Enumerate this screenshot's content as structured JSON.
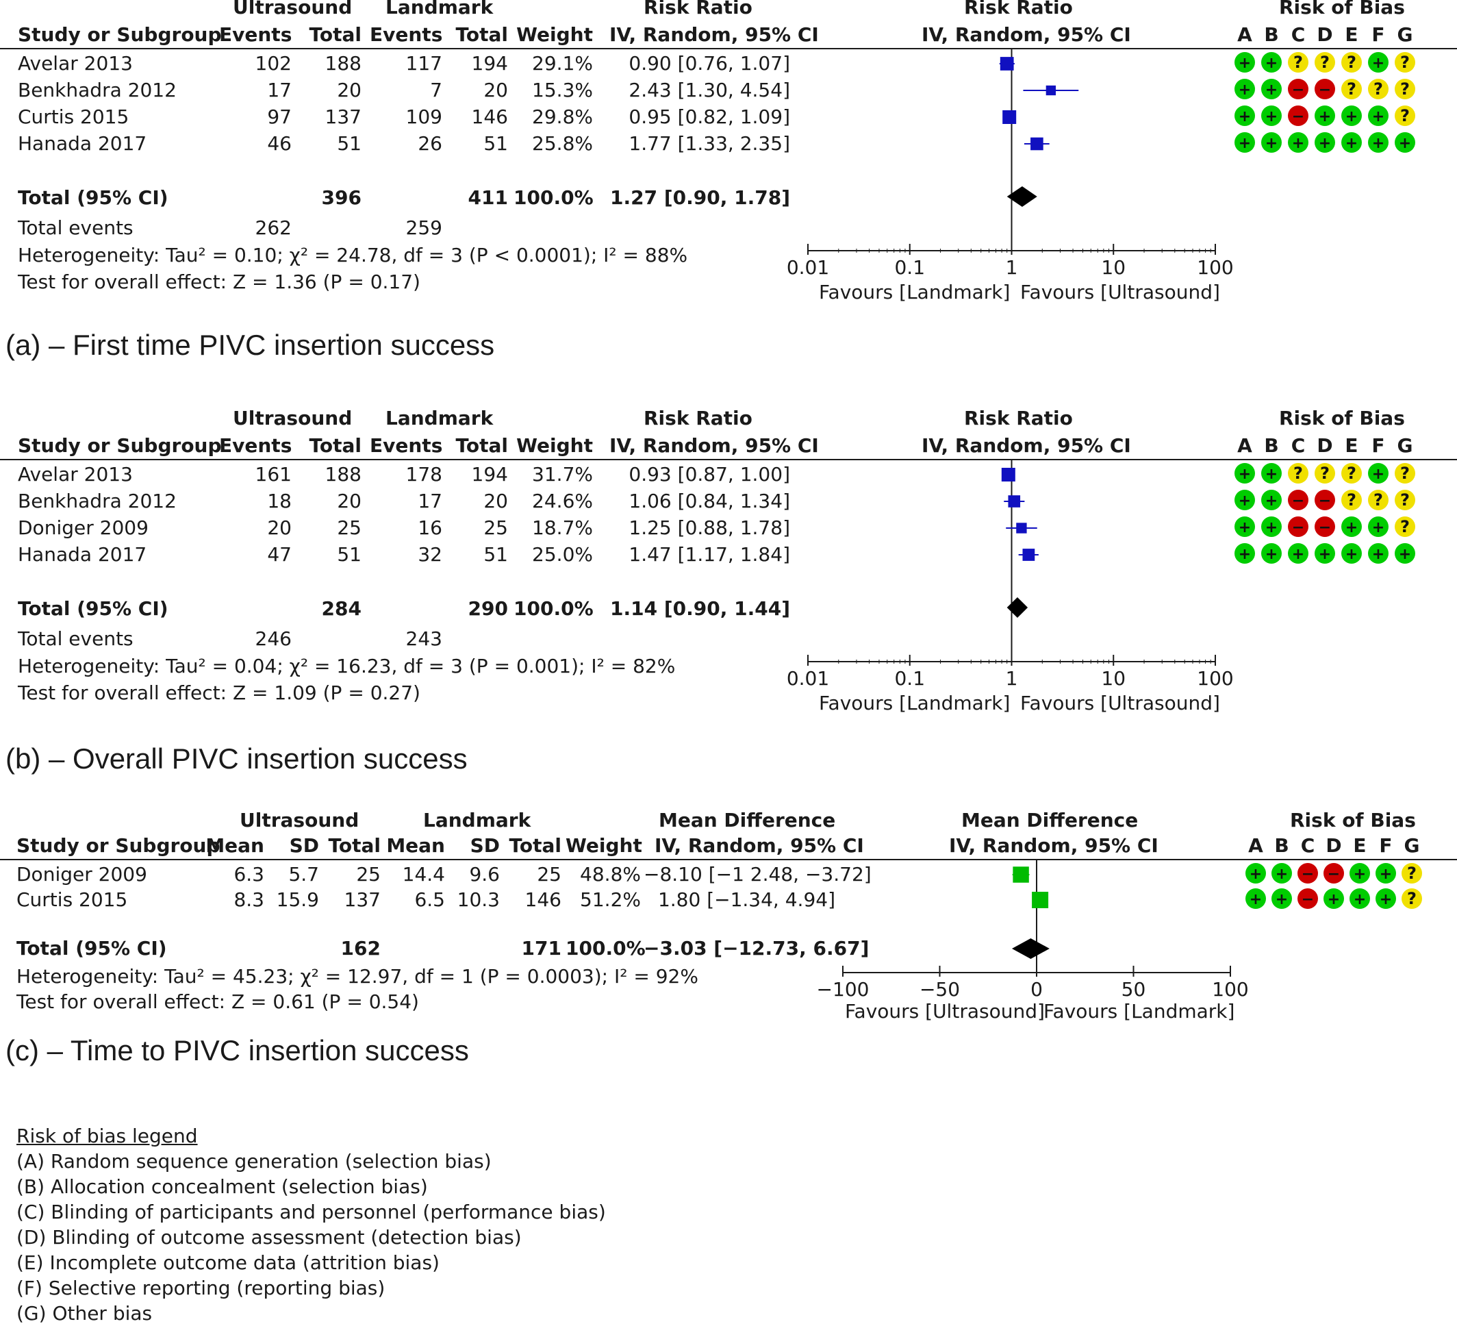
{
  "chart_data": [
    {
      "type": "forest",
      "measure": "Risk Ratio",
      "scale": "log",
      "caption": "(a) – First time PIVC insertion success",
      "headers": {
        "group1": "Ultrasound",
        "group2": "Landmark",
        "study": "Study or Subgroup",
        "events": "Events",
        "total": "Total",
        "weight": "Weight",
        "effect_top": "Risk Ratio",
        "effect_sub": "IV, Random, 95% CI",
        "plot_top": "Risk Ratio",
        "plot_sub": "IV, Random, 95% CI",
        "rob_title": "Risk of Bias"
      },
      "rob_letters": [
        "A",
        "B",
        "C",
        "D",
        "E",
        "F",
        "G"
      ],
      "studies": [
        {
          "name": "Avelar 2013",
          "e1": "102",
          "n1": "188",
          "e2": "117",
          "n2": "194",
          "weight": "29.1%",
          "ci_text": "0.90 [0.76, 1.07]",
          "est": 0.9,
          "lo": 0.76,
          "hi": 1.07,
          "w": 29.1,
          "rob": [
            "+",
            "+",
            "?",
            "?",
            "?",
            "+",
            "?"
          ]
        },
        {
          "name": "Benkhadra 2012",
          "e1": "17",
          "n1": "20",
          "e2": "7",
          "n2": "20",
          "weight": "15.3%",
          "ci_text": "2.43 [1.30, 4.54]",
          "est": 2.43,
          "lo": 1.3,
          "hi": 4.54,
          "w": 15.3,
          "rob": [
            "+",
            "+",
            "-",
            "-",
            "?",
            "?",
            "?"
          ]
        },
        {
          "name": "Curtis 2015",
          "e1": "97",
          "n1": "137",
          "e2": "109",
          "n2": "146",
          "weight": "29.8%",
          "ci_text": "0.95 [0.82, 1.09]",
          "est": 0.95,
          "lo": 0.82,
          "hi": 1.09,
          "w": 29.8,
          "rob": [
            "+",
            "+",
            "-",
            "+",
            "+",
            "+",
            "?"
          ]
        },
        {
          "name": "Hanada 2017",
          "e1": "46",
          "n1": "51",
          "e2": "26",
          "n2": "51",
          "weight": "25.8%",
          "ci_text": "1.77 [1.33, 2.35]",
          "est": 1.77,
          "lo": 1.33,
          "hi": 2.35,
          "w": 25.8,
          "rob": [
            "+",
            "+",
            "+",
            "+",
            "+",
            "+",
            "+"
          ]
        }
      ],
      "total": {
        "label": "Total (95% CI)",
        "n1": "396",
        "n2": "411",
        "weight": "100.0%",
        "ci_text": "1.27 [0.90, 1.78]",
        "est": 1.27,
        "lo": 0.9,
        "hi": 1.78
      },
      "total_events": {
        "label": "Total events",
        "e1": "262",
        "e2": "259"
      },
      "heterogeneity": "Heterogeneity: Tau² = 0.10; χ² = 24.78, df = 3 (P < 0.0001); I² = 88%",
      "overall_effect": "Test for overall effect: Z = 1.36 (P = 0.17)",
      "axis": {
        "ticks": [
          0.01,
          0.1,
          1,
          10,
          100
        ],
        "tick_labels": [
          "0.01",
          "0.1",
          "1",
          "10",
          "100"
        ],
        "left_label": "Favours [Landmark]",
        "right_label": "Favours [Ultrasound]"
      }
    },
    {
      "type": "forest",
      "measure": "Risk Ratio",
      "scale": "log",
      "caption": "(b) – Overall PIVC insertion success",
      "headers": {
        "group1": "Ultrasound",
        "group2": "Landmark",
        "study": "Study or Subgroup",
        "events": "Events",
        "total": "Total",
        "weight": "Weight",
        "effect_top": "Risk Ratio",
        "effect_sub": "IV, Random, 95% CI",
        "plot_top": "Risk Ratio",
        "plot_sub": "IV, Random, 95% CI",
        "rob_title": "Risk of Bias"
      },
      "rob_letters": [
        "A",
        "B",
        "C",
        "D",
        "E",
        "F",
        "G"
      ],
      "studies": [
        {
          "name": "Avelar 2013",
          "e1": "161",
          "n1": "188",
          "e2": "178",
          "n2": "194",
          "weight": "31.7%",
          "ci_text": "0.93 [0.87, 1.00]",
          "est": 0.93,
          "lo": 0.87,
          "hi": 1.0,
          "w": 31.7,
          "rob": [
            "+",
            "+",
            "?",
            "?",
            "?",
            "+",
            "?"
          ]
        },
        {
          "name": "Benkhadra 2012",
          "e1": "18",
          "n1": "20",
          "e2": "17",
          "n2": "20",
          "weight": "24.6%",
          "ci_text": "1.06 [0.84, 1.34]",
          "est": 1.06,
          "lo": 0.84,
          "hi": 1.34,
          "w": 24.6,
          "rob": [
            "+",
            "+",
            "-",
            "-",
            "?",
            "?",
            "?"
          ]
        },
        {
          "name": "Doniger 2009",
          "e1": "20",
          "n1": "25",
          "e2": "16",
          "n2": "25",
          "weight": "18.7%",
          "ci_text": "1.25 [0.88, 1.78]",
          "est": 1.25,
          "lo": 0.88,
          "hi": 1.78,
          "w": 18.7,
          "rob": [
            "+",
            "+",
            "-",
            "-",
            "+",
            "+",
            "?"
          ]
        },
        {
          "name": "Hanada 2017",
          "e1": "47",
          "n1": "51",
          "e2": "32",
          "n2": "51",
          "weight": "25.0%",
          "ci_text": "1.47 [1.17, 1.84]",
          "est": 1.47,
          "lo": 1.17,
          "hi": 1.84,
          "w": 25.0,
          "rob": [
            "+",
            "+",
            "+",
            "+",
            "+",
            "+",
            "+"
          ]
        }
      ],
      "total": {
        "label": "Total (95% CI)",
        "n1": "284",
        "n2": "290",
        "weight": "100.0%",
        "ci_text": "1.14 [0.90, 1.44]",
        "est": 1.14,
        "lo": 0.9,
        "hi": 1.44
      },
      "total_events": {
        "label": "Total events",
        "e1": "246",
        "e2": "243"
      },
      "heterogeneity": "Heterogeneity: Tau² = 0.04; χ² = 16.23, df = 3 (P = 0.001); I² = 82%",
      "overall_effect": "Test for overall effect: Z = 1.09 (P = 0.27)",
      "axis": {
        "ticks": [
          0.01,
          0.1,
          1,
          10,
          100
        ],
        "tick_labels": [
          "0.01",
          "0.1",
          "1",
          "10",
          "100"
        ],
        "left_label": "Favours [Landmark]",
        "right_label": "Favours [Ultrasound]"
      }
    },
    {
      "type": "forest",
      "measure": "Mean Difference",
      "scale": "linear",
      "caption": "(c) – Time to PIVC insertion success",
      "headers": {
        "group1": "Ultrasound",
        "group2": "Landmark",
        "study": "Study or Subgroup",
        "mean": "Mean",
        "sd": "SD",
        "total": "Total",
        "weight": "Weight",
        "effect_top": "Mean Difference",
        "effect_sub": "IV, Random, 95% CI",
        "plot_top": "Mean Difference",
        "plot_sub": "IV, Random, 95% CI",
        "rob_title": "Risk of Bias"
      },
      "rob_letters": [
        "A",
        "B",
        "C",
        "D",
        "E",
        "F",
        "G"
      ],
      "studies": [
        {
          "name": "Doniger 2009",
          "m1": "6.3",
          "sd1": "5.7",
          "n1": "25",
          "m2": "14.4",
          "sd2": "9.6",
          "n2": "25",
          "weight": "48.8%",
          "ci_text": "−8.10 [−1 2.48, −3.72]",
          "est": -8.1,
          "lo": -12.48,
          "hi": -3.72,
          "w": 48.8,
          "rob": [
            "+",
            "+",
            "-",
            "-",
            "+",
            "+",
            "?"
          ]
        },
        {
          "name": "Curtis 2015",
          "m1": "8.3",
          "sd1": "15.9",
          "n1": "137",
          "m2": "6.5",
          "sd2": "10.3",
          "n2": "146",
          "weight": "51.2%",
          "ci_text": "1.80 [−1.34,  4.94]",
          "est": 1.8,
          "lo": -1.34,
          "hi": 4.94,
          "w": 51.2,
          "rob": [
            "+",
            "+",
            "-",
            "+",
            "+",
            "+",
            "?"
          ]
        }
      ],
      "total": {
        "label": "Total (95% CI)",
        "n1": "162",
        "n2": "171",
        "weight": "100.0%",
        "ci_text": "−3.03 [−12.73, 6.67]",
        "est": -3.03,
        "lo": -12.73,
        "hi": 6.67
      },
      "heterogeneity": "Heterogeneity: Tau² = 45.23; χ² = 12.97, df = 1 (P = 0.0003); I² = 92%",
      "overall_effect": "Test for overall effect: Z = 0.61 (P = 0.54)",
      "axis": {
        "ticks": [
          -100,
          -50,
          0,
          50,
          100
        ],
        "tick_labels": [
          "−100",
          "−50",
          "0",
          "50",
          "100"
        ],
        "left_label": "Favours [Ultrasound]",
        "right_label": "Favours [Landmark]"
      }
    }
  ],
  "legend": {
    "title": "Risk of bias legend",
    "items": [
      "(A) Random sequence generation (selection bias)",
      "(B) Allocation concealment (selection bias)",
      "(C) Blinding of participants and personnel (performance bias)",
      "(D) Blinding of outcome assessment (detection bias)",
      "(E) Incomplete outcome data (attrition bias)",
      "(F) Selective reporting (reporting bias)",
      "(G) Other bias"
    ]
  },
  "colors": {
    "low": "#00cc00",
    "unclear": "#f0e000",
    "high": "#cc0000",
    "study_rr": "#1010c0",
    "study_md": "#00bb00",
    "summary": "#000000"
  }
}
